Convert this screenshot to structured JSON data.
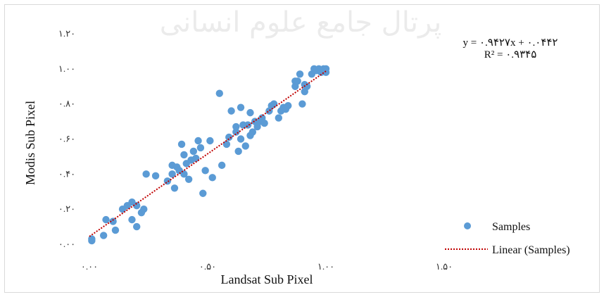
{
  "watermark": "پرتال جامع علوم انسانی",
  "chart_data": {
    "type": "scatter",
    "xlabel": "Landsat Sub Pixel",
    "ylabel": "Modis Sub Pixel",
    "xlim": [
      0,
      1.5
    ],
    "ylim": [
      0,
      1.2
    ],
    "x_ticks": [
      "۰.۰۰",
      "۰.۵۰",
      "۱.۰۰",
      "۱.۵۰"
    ],
    "y_ticks": [
      "۰.۰۰",
      "۰.۲۰",
      "۰.۴۰",
      "۰.۶۰",
      "۰.۸۰",
      "۱.۰۰",
      "۱.۲۰"
    ],
    "equation": "y = ۰.۹۴۲۷x + ۰.۰۴۴۲",
    "r_squared": "R² = ۰.۹۳۴۵",
    "legend_position": "right",
    "grid": false,
    "colors": {
      "points": "#5b9bd5",
      "trendline": "#c00000"
    },
    "series": [
      {
        "name": "Samples",
        "points": [
          [
            0.01,
            0.02
          ],
          [
            0.01,
            0.03
          ],
          [
            0.06,
            0.05
          ],
          [
            0.07,
            0.14
          ],
          [
            0.1,
            0.13
          ],
          [
            0.11,
            0.08
          ],
          [
            0.14,
            0.2
          ],
          [
            0.16,
            0.22
          ],
          [
            0.18,
            0.14
          ],
          [
            0.18,
            0.24
          ],
          [
            0.2,
            0.1
          ],
          [
            0.2,
            0.22
          ],
          [
            0.22,
            0.18
          ],
          [
            0.23,
            0.2
          ],
          [
            0.24,
            0.4
          ],
          [
            0.28,
            0.39
          ],
          [
            0.33,
            0.36
          ],
          [
            0.35,
            0.4
          ],
          [
            0.35,
            0.45
          ],
          [
            0.36,
            0.32
          ],
          [
            0.37,
            0.44
          ],
          [
            0.38,
            0.42
          ],
          [
            0.39,
            0.57
          ],
          [
            0.4,
            0.4
          ],
          [
            0.4,
            0.51
          ],
          [
            0.41,
            0.46
          ],
          [
            0.42,
            0.37
          ],
          [
            0.43,
            0.48
          ],
          [
            0.44,
            0.53
          ],
          [
            0.45,
            0.49
          ],
          [
            0.46,
            0.59
          ],
          [
            0.47,
            0.55
          ],
          [
            0.48,
            0.29
          ],
          [
            0.49,
            0.42
          ],
          [
            0.51,
            0.59
          ],
          [
            0.52,
            0.38
          ],
          [
            0.55,
            0.86
          ],
          [
            0.56,
            0.45
          ],
          [
            0.58,
            0.57
          ],
          [
            0.59,
            0.61
          ],
          [
            0.6,
            0.76
          ],
          [
            0.62,
            0.64
          ],
          [
            0.62,
            0.67
          ],
          [
            0.63,
            0.53
          ],
          [
            0.64,
            0.6
          ],
          [
            0.64,
            0.78
          ],
          [
            0.65,
            0.68
          ],
          [
            0.66,
            0.56
          ],
          [
            0.67,
            0.68
          ],
          [
            0.68,
            0.62
          ],
          [
            0.68,
            0.75
          ],
          [
            0.69,
            0.64
          ],
          [
            0.7,
            0.7
          ],
          [
            0.71,
            0.67
          ],
          [
            0.72,
            0.7
          ],
          [
            0.73,
            0.72
          ],
          [
            0.74,
            0.69
          ],
          [
            0.76,
            0.76
          ],
          [
            0.77,
            0.79
          ],
          [
            0.78,
            0.8
          ],
          [
            0.8,
            0.72
          ],
          [
            0.81,
            0.76
          ],
          [
            0.82,
            0.78
          ],
          [
            0.83,
            0.77
          ],
          [
            0.84,
            0.79
          ],
          [
            0.87,
            0.9
          ],
          [
            0.87,
            0.93
          ],
          [
            0.88,
            0.93
          ],
          [
            0.89,
            0.97
          ],
          [
            0.9,
            0.8
          ],
          [
            0.91,
            0.87
          ],
          [
            0.91,
            0.91
          ],
          [
            0.92,
            0.9
          ],
          [
            0.94,
            0.97
          ],
          [
            0.95,
            1.0
          ],
          [
            0.96,
            0.99
          ],
          [
            0.97,
            1.0
          ],
          [
            0.98,
            0.98
          ],
          [
            0.99,
            1.0
          ],
          [
            1.0,
            0.98
          ],
          [
            1.0,
            1.0
          ]
        ]
      },
      {
        "name": "Linear (Samples)",
        "trendline": {
          "slope": 0.9427,
          "intercept": 0.0442,
          "x_range": [
            0.0,
            1.0
          ]
        }
      }
    ]
  }
}
